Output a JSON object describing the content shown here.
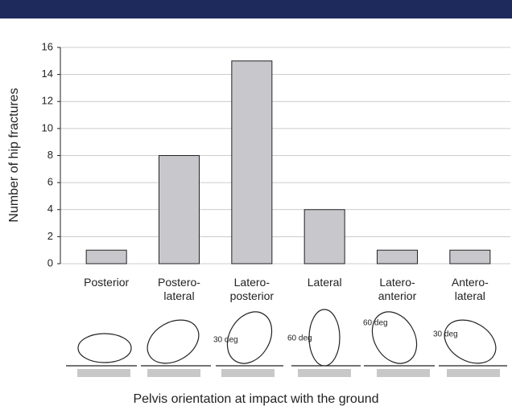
{
  "chart_data": {
    "type": "bar",
    "y_label": "Number of hip fractures",
    "x_label": "Pelvis orientation at impact with the ground",
    "categories": [
      "Posterior",
      "Postero-\nlateral",
      "Latero-\nposterior",
      "Lateral",
      "Latero-\nanterior",
      "Antero-\nlateral"
    ],
    "values": [
      1,
      8,
      15,
      4,
      1,
      1
    ],
    "color": "#c8c8cc",
    "ylim": [
      0,
      16
    ],
    "yticks": [
      0,
      2,
      4,
      6,
      8,
      10,
      12,
      14,
      16
    ],
    "grid": true,
    "annotations": [
      "30 deg",
      "60 deg",
      "60 deg",
      "30 deg"
    ]
  }
}
